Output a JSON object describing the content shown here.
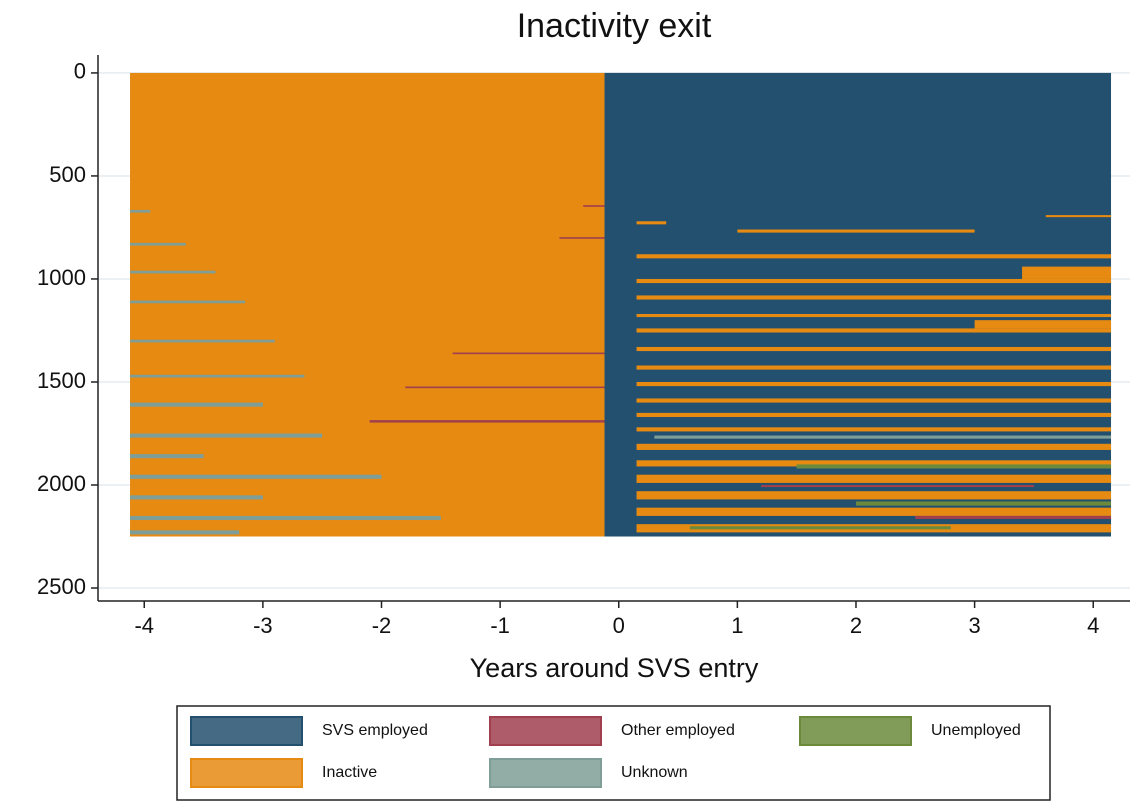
{
  "chart_data": {
    "type": "sequence",
    "title": "Inactivity exit",
    "xlabel": "Years around SVS entry",
    "xlim": [
      -4.39,
      4.31
    ],
    "ylim": [
      -87,
      2563
    ],
    "xticks": [
      -4,
      -3,
      -2,
      -1,
      0,
      1,
      2,
      3,
      4
    ],
    "yticks": [
      0,
      500,
      1000,
      1500,
      2000,
      2500
    ],
    "grid": true,
    "series": [
      {
        "name": "SVS employed",
        "color": "#24506f",
        "segments": [
          [
            0,
            2250,
            -0.12,
            4.15
          ]
        ]
      },
      {
        "name": "Other employed",
        "color": "#a0404f",
        "segments": [
          [
            1685,
            1697,
            -2.1,
            -0.12
          ],
          [
            1522,
            1530,
            -1.8,
            -0.12
          ],
          [
            1357,
            1365,
            -1.4,
            -0.12
          ],
          [
            797,
            805,
            -0.5,
            -0.12
          ],
          [
            642,
            650,
            -0.3,
            -0.12
          ],
          [
            2150,
            2165,
            2.5,
            4.15
          ],
          [
            2000,
            2010,
            1.2,
            3.5
          ]
        ]
      },
      {
        "name": "Unemployed",
        "color": "#6b8a3c",
        "segments": [
          [
            1900,
            1920,
            1.5,
            4.15
          ],
          [
            2080,
            2100,
            2.0,
            4.15
          ],
          [
            2200,
            2215,
            0.6,
            2.8
          ]
        ]
      },
      {
        "name": "Inactive",
        "color": "#e68a12",
        "segments": [
          [
            0,
            2250,
            -4.12,
            -0.12
          ],
          [
            720,
            735,
            0.15,
            0.4
          ],
          [
            690,
            700,
            3.6,
            4.15
          ],
          [
            760,
            775,
            1.0,
            3.0
          ],
          [
            880,
            900,
            0.15,
            4.15
          ],
          [
            940,
            1000,
            3.4,
            4.15
          ],
          [
            1000,
            1020,
            0.15,
            4.15
          ],
          [
            1080,
            1100,
            0.15,
            4.15
          ],
          [
            1170,
            1185,
            0.15,
            4.15
          ],
          [
            1200,
            1240,
            3.0,
            4.15
          ],
          [
            1240,
            1260,
            0.15,
            4.15
          ],
          [
            1330,
            1350,
            0.15,
            4.15
          ],
          [
            1420,
            1440,
            0.15,
            4.15
          ],
          [
            1500,
            1520,
            0.15,
            4.15
          ],
          [
            1580,
            1600,
            0.15,
            4.15
          ],
          [
            1650,
            1670,
            0.15,
            4.15
          ],
          [
            1720,
            1740,
            0.15,
            4.15
          ],
          [
            1800,
            1830,
            0.15,
            4.15
          ],
          [
            1880,
            1910,
            0.15,
            4.15
          ],
          [
            1950,
            1990,
            0.15,
            4.15
          ],
          [
            2030,
            2070,
            0.15,
            4.15
          ],
          [
            2110,
            2150,
            0.15,
            4.15
          ],
          [
            2190,
            2230,
            0.15,
            4.15
          ]
        ]
      },
      {
        "name": "Unknown",
        "color": "#7f9e97",
        "segments": [
          [
            665,
            678,
            -4.12,
            -3.95
          ],
          [
            825,
            838,
            -4.12,
            -3.65
          ],
          [
            960,
            973,
            -4.12,
            -3.4
          ],
          [
            1105,
            1118,
            -4.12,
            -3.15
          ],
          [
            1295,
            1308,
            -4.12,
            -2.9
          ],
          [
            1465,
            1478,
            -4.12,
            -2.65
          ],
          [
            1600,
            1620,
            -4.12,
            -3.0
          ],
          [
            1750,
            1770,
            -4.12,
            -2.5
          ],
          [
            1850,
            1870,
            -4.12,
            -3.5
          ],
          [
            1950,
            1970,
            -4.12,
            -2.0
          ],
          [
            2050,
            2070,
            -4.12,
            -3.0
          ],
          [
            2150,
            2170,
            -4.12,
            -1.5
          ],
          [
            2220,
            2240,
            -4.12,
            -3.2
          ],
          [
            1760,
            1775,
            0.3,
            4.15
          ]
        ]
      }
    ]
  }
}
